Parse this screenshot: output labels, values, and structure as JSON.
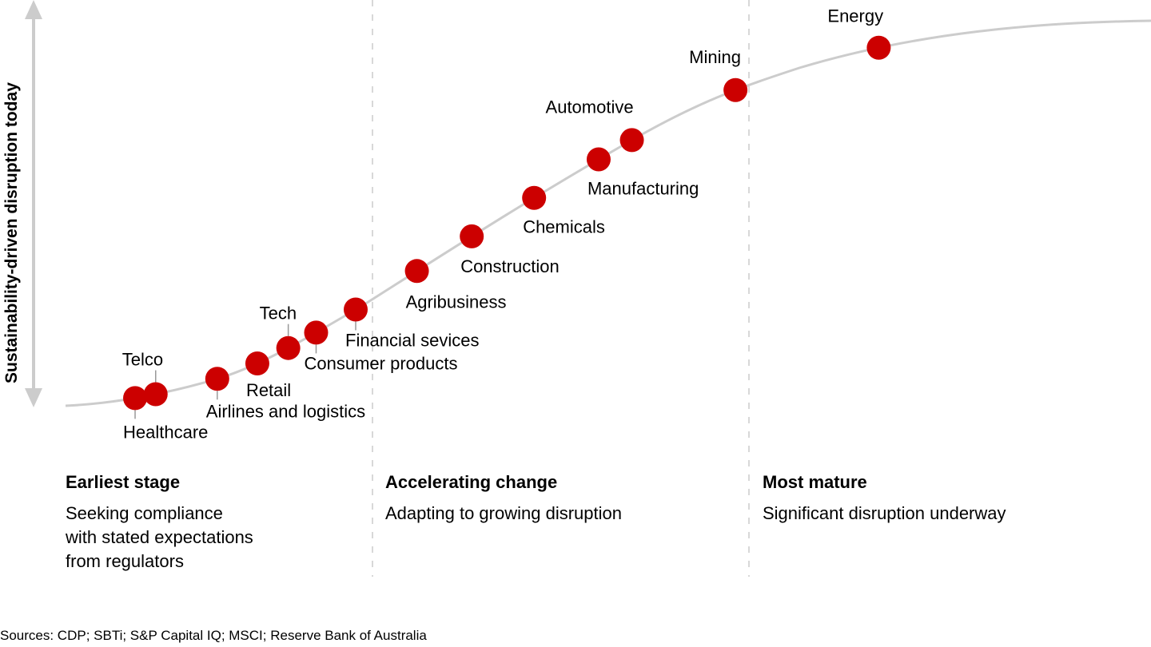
{
  "chart_data": {
    "type": "scatter",
    "title": "",
    "ylabel": "Sustainability-driven disruption today",
    "xlabel": "",
    "curve": "S-curve (maturity curve)",
    "points": [
      {
        "label": "Healthcare",
        "x": 1,
        "y": 0.02,
        "label_pos": "below"
      },
      {
        "label": "Telco",
        "x": 2,
        "y": 0.03,
        "label_pos": "above"
      },
      {
        "label": "Airlines and logistics",
        "x": 3,
        "y": 0.07,
        "label_pos": "below"
      },
      {
        "label": "Retail",
        "x": 4,
        "y": 0.11,
        "label_pos": "below"
      },
      {
        "label": "Tech",
        "x": 5,
        "y": 0.15,
        "label_pos": "above"
      },
      {
        "label": "Consumer products",
        "x": 6,
        "y": 0.19,
        "label_pos": "below"
      },
      {
        "label": "Financial sevices",
        "x": 7,
        "y": 0.25,
        "label_pos": "below"
      },
      {
        "label": "Agribusiness",
        "x": 8,
        "y": 0.35,
        "label_pos": "right"
      },
      {
        "label": "Construction",
        "x": 9,
        "y": 0.44,
        "label_pos": "right"
      },
      {
        "label": "Chemicals",
        "x": 10,
        "y": 0.54,
        "label_pos": "right"
      },
      {
        "label": "Manufacturing",
        "x": 11,
        "y": 0.64,
        "label_pos": "right"
      },
      {
        "label": "Automotive",
        "x": 12,
        "y": 0.69,
        "label_pos": "above"
      },
      {
        "label": "Mining",
        "x": 13,
        "y": 0.82,
        "label_pos": "above"
      },
      {
        "label": "Energy",
        "x": 14,
        "y": 0.93,
        "label_pos": "above"
      }
    ],
    "stages": [
      {
        "title": "Earliest stage",
        "description": "Seeking compliance\nwith stated expectations\nfrom regulators"
      },
      {
        "title": "Accelerating change",
        "description": "Adapting to growing disruption"
      },
      {
        "title": "Most mature",
        "description": "Significant disruption underway"
      }
    ],
    "colors": {
      "dot": "#CC0000",
      "curve": "#CCCCCC",
      "divider": "#CCCCCC",
      "axis": "#CCCCCC"
    }
  },
  "source": "Sources: CDP; SBTi; S&P Capital IQ; MSCI; Reserve Bank of Australia"
}
